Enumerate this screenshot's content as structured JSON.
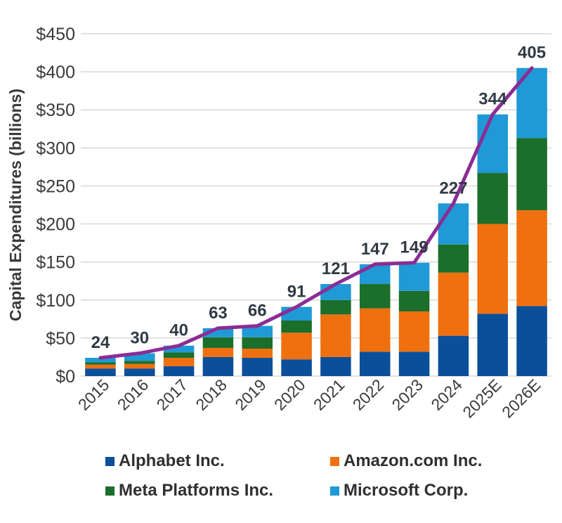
{
  "chart_data": {
    "type": "bar",
    "stacked": true,
    "ylabel": "Capital Expenditures (billions)",
    "ylim": [
      0,
      450
    ],
    "yticks": [
      0,
      50,
      100,
      150,
      200,
      250,
      300,
      350,
      400,
      450
    ],
    "ytick_labels": [
      "$0",
      "$50",
      "$100",
      "$150",
      "$200",
      "$250",
      "$300",
      "$350",
      "$400",
      "$450"
    ],
    "grid": "horizontal",
    "categories": [
      "2015",
      "2016",
      "2017",
      "2018",
      "2019",
      "2020",
      "2021",
      "2022",
      "2023",
      "2024",
      "2025E",
      "2026E"
    ],
    "series": [
      {
        "name": "Alphabet Inc.",
        "color": "#0b4f9a",
        "values": [
          10,
          10,
          13,
          25,
          24,
          22,
          25,
          32,
          32,
          53,
          82,
          92
        ]
      },
      {
        "name": "Amazon.com Inc.",
        "color": "#f0700f",
        "values": [
          5,
          6,
          11,
          12,
          12,
          35,
          56,
          57,
          53,
          83,
          118,
          126
        ]
      },
      {
        "name": "Meta Platforms Inc.",
        "color": "#1c6e2b",
        "values": [
          3,
          4,
          7,
          14,
          15,
          16,
          19,
          32,
          27,
          37,
          67,
          95
        ]
      },
      {
        "name": "Microsoft Corp.",
        "color": "#1f9ad6",
        "values": [
          6,
          10,
          9,
          12,
          15,
          18,
          21,
          26,
          37,
          54,
          77,
          92
        ]
      }
    ],
    "total_line": {
      "color": "#8b2d95",
      "values": [
        24,
        30,
        40,
        63,
        66,
        91,
        121,
        147,
        149,
        227,
        344,
        405
      ]
    },
    "data_labels": [
      "24",
      "30",
      "40",
      "63",
      "66",
      "91",
      "121",
      "147",
      "149",
      "227",
      "344",
      "405"
    ],
    "legend_position": "bottom"
  }
}
